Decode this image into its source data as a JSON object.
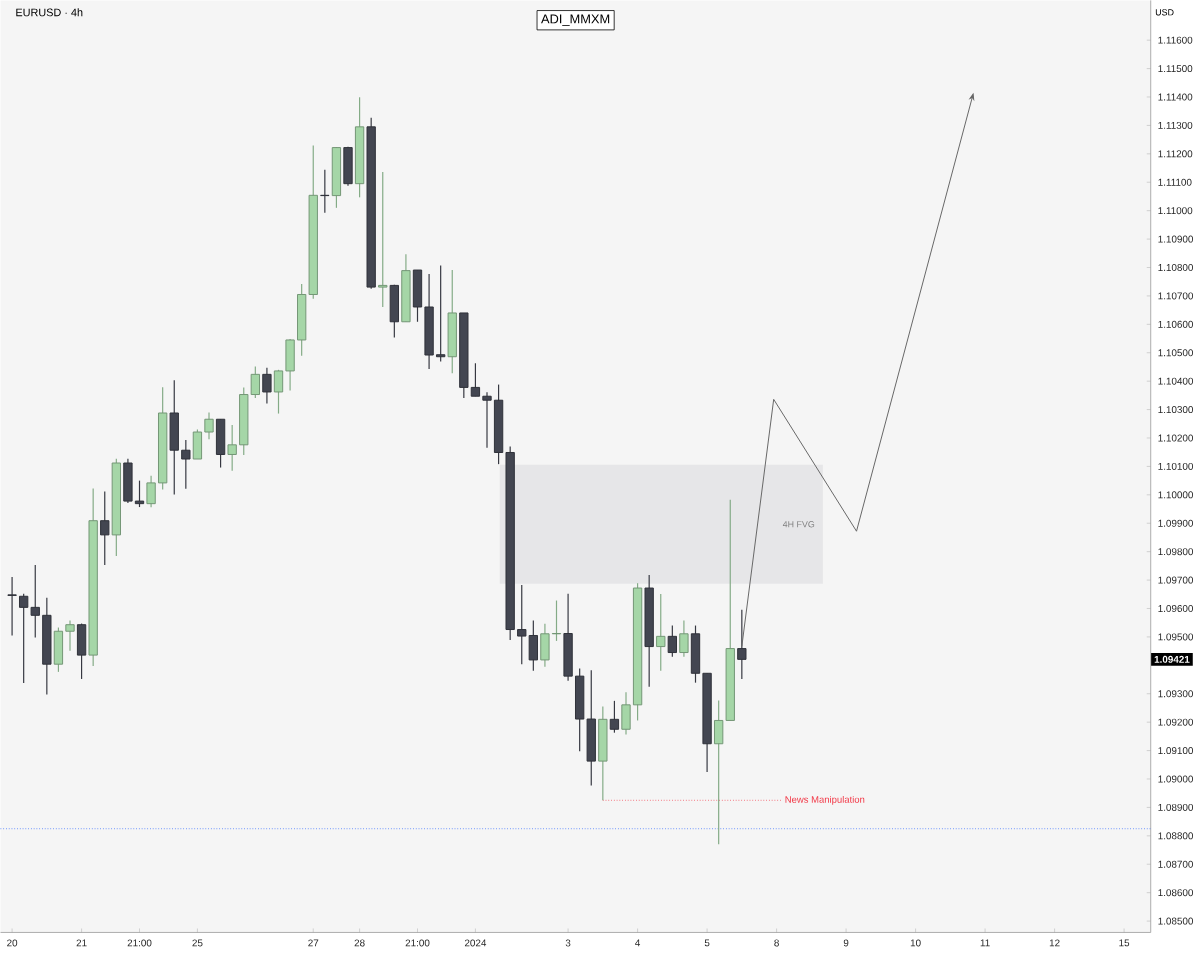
{
  "chart_data": {
    "type": "candlestick",
    "title": "EURUSD · 4h",
    "subtitle": "ADI_MMXM",
    "ylabel": "USD",
    "categories": [
      "20",
      null,
      null,
      null,
      null,
      null,
      "21",
      null,
      null,
      null,
      null,
      "21:00",
      null,
      null,
      null,
      null,
      "25",
      null,
      null,
      null,
      null,
      null,
      null,
      null,
      null,
      null,
      "27",
      null,
      null,
      null,
      "28",
      null,
      null,
      null,
      null,
      "21:00",
      null,
      null,
      null,
      null,
      "2024",
      null,
      null,
      null,
      null,
      null,
      null,
      null,
      "3",
      null,
      null,
      null,
      null,
      null,
      "4",
      null,
      null,
      null,
      null,
      null,
      "5",
      null,
      null,
      null,
      null,
      null,
      "8",
      null,
      null,
      null,
      null,
      null,
      "9",
      null,
      null,
      null,
      null,
      null,
      "10",
      null,
      null,
      null,
      null,
      null,
      "11",
      null,
      null,
      null,
      null,
      null,
      "12",
      null,
      null,
      null,
      null,
      null,
      "15"
    ],
    "ohlc": [
      [
        1.09648,
        1.09711,
        1.09505,
        1.09646
      ],
      [
        1.09643,
        1.09652,
        1.09338,
        1.09604
      ],
      [
        1.09604,
        1.09753,
        1.09498,
        1.09576
      ],
      [
        1.09576,
        1.09638,
        1.09297,
        1.09404
      ],
      [
        1.09404,
        1.09533,
        1.09377,
        1.0952
      ],
      [
        1.0952,
        1.09558,
        1.09451,
        1.09543
      ],
      [
        1.09543,
        1.09547,
        1.09352,
        1.09436
      ],
      [
        1.09436,
        1.10022,
        1.09398,
        1.09909
      ],
      [
        1.09909,
        1.10012,
        1.09753,
        1.09859
      ],
      [
        1.09859,
        1.10127,
        1.09785,
        1.10112
      ],
      [
        1.10112,
        1.10127,
        1.09971,
        1.09978
      ],
      [
        1.09978,
        1.1005,
        1.09957,
        1.09969
      ],
      [
        1.09969,
        1.10067,
        1.09956,
        1.10042
      ],
      [
        1.10042,
        1.10379,
        1.10019,
        1.10288
      ],
      [
        1.10288,
        1.10403,
        1.10001,
        1.10157
      ],
      [
        1.10157,
        1.10193,
        1.10021,
        1.10126
      ],
      [
        1.10126,
        1.1023,
        1.10126,
        1.10221
      ],
      [
        1.10221,
        1.1029,
        1.10196,
        1.10266
      ],
      [
        1.10266,
        1.10266,
        1.10096,
        1.10142
      ],
      [
        1.10142,
        1.10246,
        1.10085,
        1.10176
      ],
      [
        1.10176,
        1.10378,
        1.1014,
        1.10353
      ],
      [
        1.10353,
        1.10452,
        1.10341,
        1.10424
      ],
      [
        1.10424,
        1.10447,
        1.10321,
        1.10362
      ],
      [
        1.10362,
        1.1044,
        1.10286,
        1.10436
      ],
      [
        1.10436,
        1.10548,
        1.10367,
        1.10545
      ],
      [
        1.10545,
        1.10742,
        1.10489,
        1.10705
      ],
      [
        1.10705,
        1.11229,
        1.1069,
        1.11054
      ],
      [
        1.11054,
        1.11144,
        1.10993,
        1.11053
      ],
      [
        1.11053,
        1.11224,
        1.1101,
        1.11222
      ],
      [
        1.11222,
        1.11225,
        1.11088,
        1.11095
      ],
      [
        1.11095,
        1.11399,
        1.11047,
        1.11295
      ],
      [
        1.11295,
        1.11327,
        1.10725,
        1.10731
      ],
      [
        1.10731,
        1.11136,
        1.10661,
        1.10737
      ],
      [
        1.10737,
        1.10739,
        1.10554,
        1.10609
      ],
      [
        1.10609,
        1.10847,
        1.10609,
        1.10789
      ],
      [
        1.10791,
        1.10791,
        1.10609,
        1.10661
      ],
      [
        1.10661,
        1.10777,
        1.10443,
        1.10492
      ],
      [
        1.10493,
        1.10807,
        1.10469,
        1.10486
      ],
      [
        1.10486,
        1.10791,
        1.10428,
        1.1064
      ],
      [
        1.1064,
        1.1064,
        1.10341,
        1.10378
      ],
      [
        1.10378,
        1.10463,
        1.10347,
        1.10347
      ],
      [
        1.10347,
        1.10361,
        1.10166,
        1.10333
      ],
      [
        1.10333,
        1.10388,
        1.10108,
        1.10149
      ],
      [
        1.10149,
        1.1017,
        1.09489,
        1.09526
      ],
      [
        1.09526,
        1.09683,
        1.09404,
        1.09503
      ],
      [
        1.09505,
        1.09558,
        1.09381,
        1.09419
      ],
      [
        1.09419,
        1.09546,
        1.09395,
        1.09511
      ],
      [
        1.09511,
        1.09628,
        1.09486,
        1.09512
      ],
      [
        1.09512,
        1.09652,
        1.09346,
        1.09362
      ],
      [
        1.09362,
        1.09389,
        1.09098,
        1.09211
      ],
      [
        1.09211,
        1.09383,
        1.08977,
        1.09063
      ],
      [
        1.09063,
        1.09255,
        1.08925,
        1.0921
      ],
      [
        1.0921,
        1.09275,
        1.09163,
        1.09175
      ],
      [
        1.09175,
        1.09305,
        1.09157,
        1.09261
      ],
      [
        1.09261,
        1.09689,
        1.09206,
        1.09672
      ],
      [
        1.09672,
        1.09718,
        1.09325,
        1.09466
      ],
      [
        1.09466,
        1.09651,
        1.09381,
        1.09502
      ],
      [
        1.09502,
        1.0954,
        1.0943,
        1.09445
      ],
      [
        1.09445,
        1.09558,
        1.0943,
        1.09511
      ],
      [
        1.09511,
        1.0954,
        1.09339,
        1.09372
      ],
      [
        1.09372,
        1.09372,
        1.09025,
        1.09124
      ],
      [
        1.09124,
        1.09276,
        1.0877,
        1.09206
      ],
      [
        1.09206,
        1.09983,
        1.09206,
        1.09459
      ],
      [
        1.09459,
        1.09596,
        1.09352,
        1.09421
      ],
      null,
      null,
      null,
      null,
      null,
      null,
      null,
      null,
      null,
      null,
      null,
      null,
      null,
      null,
      null,
      null,
      null,
      null,
      null,
      null,
      null,
      null,
      null,
      null,
      null,
      null,
      null,
      null,
      null,
      null,
      null,
      null,
      null
    ],
    "colors": [
      "#434651",
      "#434651",
      "#434651",
      "#434651",
      "#a5d6a7",
      "#a5d6a7",
      "#434651",
      "#a5d6a7",
      "#434651",
      "#a5d6a7",
      "#434651",
      "#434651",
      "#a5d6a7",
      "#a5d6a7",
      "#434651",
      "#434651",
      "#a5d6a7",
      "#a5d6a7",
      "#434651",
      "#a5d6a7",
      "#a5d6a7",
      "#a5d6a7",
      "#434651",
      "#a5d6a7",
      "#a5d6a7",
      "#a5d6a7",
      "#a5d6a7",
      "#434651",
      "#a5d6a7",
      "#434651",
      "#a5d6a7",
      "#434651",
      "#a5d6a7",
      "#434651",
      "#a5d6a7",
      "#434651",
      "#434651",
      "#434651",
      "#a5d6a7",
      "#434651",
      "#434651",
      "#434651",
      "#434651",
      "#434651",
      "#434651",
      "#434651",
      "#a5d6a7",
      "#a5d6a7",
      "#434651",
      "#434651",
      "#434651",
      "#a5d6a7",
      "#434651",
      "#a5d6a7",
      "#a5d6a7",
      "#434651",
      "#a5d6a7",
      "#434651",
      "#a5d6a7",
      "#434651",
      "#434651",
      "#a5d6a7",
      "#a5d6a7",
      "#434651",
      null,
      null,
      null,
      null,
      null,
      null,
      null,
      null,
      null,
      null,
      null,
      null,
      null,
      null,
      null,
      null,
      null,
      null,
      null,
      null,
      null,
      null,
      null,
      null,
      null,
      null,
      null,
      null,
      null,
      null,
      null,
      null,
      null
    ],
    "ylim": [
      1.0846,
      1.1174
    ],
    "yticks": [
      {
        "value": 1.085,
        "label": "1.08500"
      },
      {
        "value": 1.086,
        "label": "1.08600"
      },
      {
        "value": 1.087,
        "label": "1.08700"
      },
      {
        "value": 1.088,
        "label": "1.08800"
      },
      {
        "value": 1.089,
        "label": "1.08900"
      },
      {
        "value": 1.09,
        "label": "1.09000"
      },
      {
        "value": 1.091,
        "label": "1.09100"
      },
      {
        "value": 1.092,
        "label": "1.09200"
      },
      {
        "value": 1.093,
        "label": "1.09300"
      },
      {
        "value": 1.095,
        "label": "1.09500"
      },
      {
        "value": 1.096,
        "label": "1.09600"
      },
      {
        "value": 1.097,
        "label": "1.09700"
      },
      {
        "value": 1.098,
        "label": "1.09800"
      },
      {
        "value": 1.099,
        "label": "1.09900"
      },
      {
        "value": 1.1,
        "label": "1.10000"
      },
      {
        "value": 1.101,
        "label": "1.10100"
      },
      {
        "value": 1.102,
        "label": "1.10200"
      },
      {
        "value": 1.103,
        "label": "1.10300"
      },
      {
        "value": 1.104,
        "label": "1.10400"
      },
      {
        "value": 1.105,
        "label": "1.10500"
      },
      {
        "value": 1.106,
        "label": "1.10600"
      },
      {
        "value": 1.107,
        "label": "1.10700"
      },
      {
        "value": 1.108,
        "label": "1.10800"
      },
      {
        "value": 1.109,
        "label": "1.10900"
      },
      {
        "value": 1.11,
        "label": "1.11000"
      },
      {
        "value": 1.111,
        "label": "1.11100"
      },
      {
        "value": 1.112,
        "label": "1.11200"
      },
      {
        "value": 1.113,
        "label": "1.11300"
      },
      {
        "value": 1.114,
        "label": "1.11400"
      },
      {
        "value": 1.115,
        "label": "1.11500"
      },
      {
        "value": 1.116,
        "label": "1.11600"
      }
    ],
    "bands": [
      {
        "axis": "y",
        "from": 1.09687,
        "to": 1.10106,
        "label": "4H FVG",
        "color": "#e6e6e8"
      }
    ],
    "ref_lines": [
      {
        "axis": "y",
        "value": 1.08925,
        "label": "News Manipulation",
        "color": "#f23645",
        "line_style": "dotted"
      },
      {
        "axis": "y",
        "value": 1.08825,
        "color": "#2962ff",
        "line_style": "dotted"
      }
    ],
    "annotations": [
      "1.09421"
    ]
  }
}
